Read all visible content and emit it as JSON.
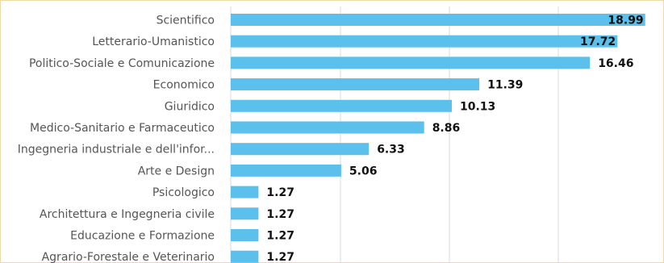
{
  "chart_data": {
    "type": "bar",
    "orientation": "horizontal",
    "categories": [
      "Scientifico",
      "Letterario-Umanistico",
      "Politico-Sociale e Comunicazione",
      "Economico",
      "Giuridico",
      "Medico-Sanitario e Farmaceutico",
      "Ingegneria industriale e dell'infor...",
      "Arte e Design",
      "Psicologico",
      "Architettura e Ingegneria civile",
      "Educazione e Formazione",
      "Agrario-Forestale e Veterinario"
    ],
    "values": [
      18.99,
      17.72,
      16.46,
      11.39,
      10.13,
      8.86,
      6.33,
      5.06,
      1.27,
      1.27,
      1.27,
      1.27
    ],
    "value_labels": [
      "18.99",
      "17.72",
      "16.46",
      "11.39",
      "10.13",
      "8.86",
      "6.33",
      "5.06",
      "1.27",
      "1.27",
      "1.27",
      "1.27"
    ],
    "xlim": [
      0,
      20
    ],
    "grid": true,
    "bar_color": "#5bc0eb",
    "label_color": "#555555",
    "value_label_color": "#111111"
  }
}
